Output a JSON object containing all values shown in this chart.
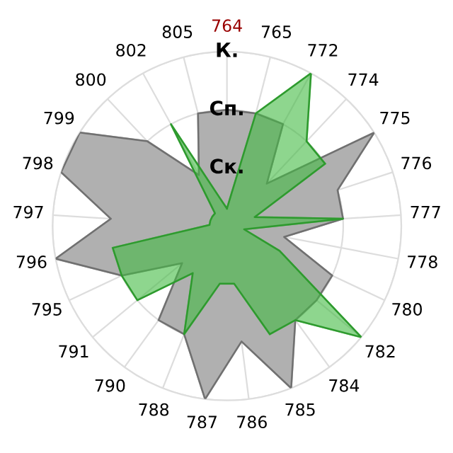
{
  "chart_data": {
    "type": "radar",
    "categories": [
      "764",
      "765",
      "772",
      "774",
      "775",
      "776",
      "777",
      "778",
      "780",
      "782",
      "784",
      "785",
      "786",
      "787",
      "788",
      "790",
      "791",
      "795",
      "796",
      "797",
      "798",
      "799",
      "800",
      "802",
      "805"
    ],
    "series": [
      {
        "color": "#b0b0b0",
        "values": [
          2.0,
          2.0,
          2.0,
          1.0,
          3.0,
          2.0,
          2.0,
          1.0,
          2.0,
          2.0,
          2.0,
          3.0,
          2.0,
          3.0,
          2.0,
          2.0,
          1.0,
          2.0,
          3.0,
          2.0,
          3.0,
          3.0,
          2.0,
          1.0,
          2.0
        ]
      },
      {
        "color": "#43bb43",
        "values": [
          0.3,
          2.0,
          3.0,
          2.0,
          2.0,
          0.5,
          2.0,
          0.3,
          1.0,
          3.0,
          2.0,
          2.0,
          1.0,
          1.0,
          2.0,
          1.0,
          2.0,
          2.0,
          2.0,
          0.3,
          0.3,
          0.3,
          0.3,
          2.0,
          0.5
        ]
      }
    ],
    "ylim": [
      0,
      3
    ],
    "yticks": [
      {
        "value": 1,
        "label": "Ск."
      },
      {
        "value": 2,
        "label": "Сп."
      },
      {
        "value": 3,
        "label": "К."
      }
    ],
    "grid": true
  }
}
